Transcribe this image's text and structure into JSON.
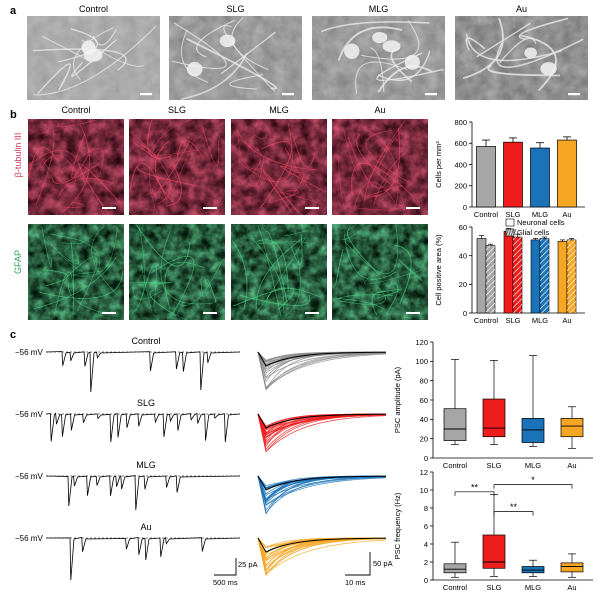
{
  "panel_letters": [
    "a",
    "b",
    "c"
  ],
  "conditions": [
    "Control",
    "SLG",
    "MLG",
    "Au"
  ],
  "panel_b": {
    "row_labels": [
      "β-tubulin III",
      "GFAP"
    ],
    "row_colors": [
      "#d23a5a",
      "#2fa35a"
    ]
  },
  "panel_c": {
    "voltage_label": "−56 mV",
    "scale_bars": {
      "trace_amplitude": "25 pA",
      "trace_time": "500 ms",
      "avg_amplitude": "50 pA",
      "avg_time": "10 ms"
    },
    "trace_colors": [
      "#888888",
      "#ee1c1c",
      "#1a73b8",
      "#f5a623"
    ]
  },
  "colors": {
    "Control": "#a6a6a6",
    "SLG": "#ee1c1c",
    "MLG": "#1a73b8",
    "Au": "#f5a623"
  },
  "chart_data": [
    {
      "id": "cells-per-mm2",
      "type": "bar",
      "categories": [
        "Control",
        "SLG",
        "MLG",
        "Au"
      ],
      "values": [
        570,
        610,
        555,
        630
      ],
      "errors": [
        60,
        40,
        50,
        30
      ],
      "ylabel": "Cells per mm²",
      "ylim": [
        0,
        800
      ],
      "yticks": [
        0,
        200,
        400,
        600,
        800
      ],
      "grid": false
    },
    {
      "id": "cell-positive-area",
      "type": "bar",
      "categories": [
        "Control",
        "SLG",
        "MLG",
        "Au"
      ],
      "series": [
        {
          "name": "Neuronal cells",
          "values": [
            52,
            57,
            51,
            50
          ],
          "errors": [
            2,
            2,
            1,
            1
          ]
        },
        {
          "name": "Glial cells",
          "values": [
            47,
            53,
            52,
            51
          ],
          "errors": [
            1,
            2,
            1,
            1
          ]
        }
      ],
      "ylabel": "Cell positive area (%)",
      "ylim": [
        0,
        60
      ],
      "yticks": [
        0,
        20,
        40,
        60
      ],
      "legend": "top-right",
      "grid": false
    },
    {
      "id": "psc-amplitude",
      "type": "box",
      "categories": [
        "Control",
        "SLG",
        "MLG",
        "Au"
      ],
      "boxes": [
        {
          "min": 14,
          "q1": 18,
          "median": 30,
          "q3": 51,
          "max": 102
        },
        {
          "min": 14,
          "q1": 22,
          "median": 31,
          "q3": 61,
          "max": 101
        },
        {
          "min": 12,
          "q1": 16,
          "median": 29,
          "q3": 41,
          "max": 106
        },
        {
          "min": 10,
          "q1": 22,
          "median": 33,
          "q3": 41,
          "max": 53
        }
      ],
      "ylabel": "PSC amplitude (pA)",
      "ylim": [
        0,
        120
      ],
      "yticks": [
        0,
        20,
        40,
        60,
        80,
        100,
        120
      ],
      "grid": false
    },
    {
      "id": "psc-frequency",
      "type": "box",
      "categories": [
        "Control",
        "SLG",
        "MLG",
        "Au"
      ],
      "boxes": [
        {
          "min": 0.3,
          "q1": 0.8,
          "median": 1.2,
          "q3": 1.8,
          "max": 4.2
        },
        {
          "min": 0.4,
          "q1": 1.3,
          "median": 2.0,
          "q3": 5.0,
          "max": 9.5
        },
        {
          "min": 0.4,
          "q1": 0.8,
          "median": 1.1,
          "q3": 1.5,
          "max": 2.2
        },
        {
          "min": 0.3,
          "q1": 0.9,
          "median": 1.5,
          "q3": 1.9,
          "max": 2.9
        }
      ],
      "ylabel": "PSC frequency (Hz)",
      "ylim": [
        0,
        12
      ],
      "yticks": [
        0,
        2,
        4,
        6,
        8,
        10,
        12
      ],
      "significance": [
        {
          "from": "Control",
          "to": "SLG",
          "label": "**",
          "y": 9.8
        },
        {
          "from": "SLG",
          "to": "MLG",
          "label": "**",
          "y": 7.6
        },
        {
          "from": "SLG",
          "to": "Au",
          "label": "*",
          "y": 10.6
        }
      ],
      "grid": false
    }
  ]
}
